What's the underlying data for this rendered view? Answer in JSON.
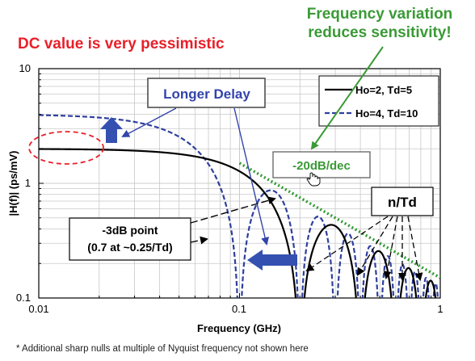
{
  "headlines": {
    "dc_note": "DC value is very pessimistic",
    "freq_note_line1": "Frequency variation",
    "freq_note_line2": "reduces sensitivity!"
  },
  "footnote": "* Additional sharp nulls at multiple of Nyquist frequency not shown here",
  "colors": {
    "red": "#e8202a",
    "green": "#3a9a36",
    "blue": "#3344aa",
    "series1": "#000000",
    "series2": "#2f3f9e",
    "arrow_blue": "#3450b0"
  },
  "chart_data": {
    "type": "line",
    "title": "",
    "xlabel": "Frequency (GHz)",
    "ylabel": "|H(f)|  (ps/mV)",
    "xscale": "log",
    "yscale": "log",
    "xlim": [
      0.01,
      1
    ],
    "ylim": [
      0.1,
      10
    ],
    "x_ticks": [
      "0.01",
      "0.1",
      "1"
    ],
    "y_ticks": [
      "0.1",
      "1",
      "10"
    ],
    "grid": true,
    "legend_position": "top-right",
    "series": [
      {
        "name": "Ho=2, Td=5",
        "Ho": 2,
        "Td": 5,
        "style": "solid"
      },
      {
        "name": "Ho=4, Td=10",
        "Ho": 4,
        "Td": 10,
        "style": "dashed"
      }
    ],
    "asymptote": {
      "label": "-20dB/dec",
      "style": "dotted",
      "x": [
        0.1,
        1
      ],
      "y": [
        1.5,
        0.15
      ]
    },
    "annotations": {
      "longer_delay": "Longer Delay",
      "minus3db_line1": "-3dB point",
      "minus3db_line2": "(0.7 at ~0.25/Td)",
      "slope": "-20dB/dec",
      "nulls": "n/Td"
    }
  }
}
